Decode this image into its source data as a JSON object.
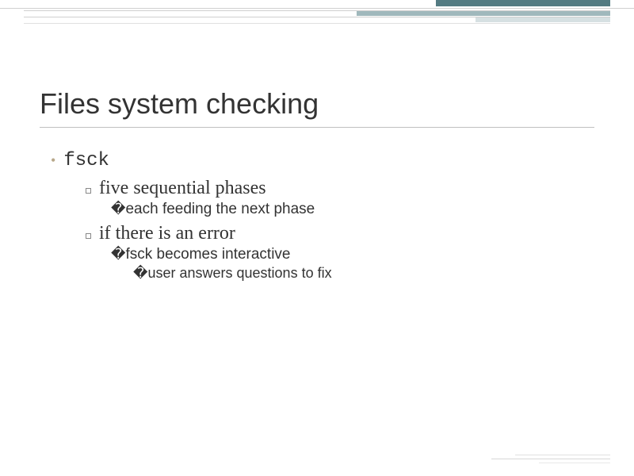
{
  "colors": {
    "accent_dark": "#537b82",
    "accent_mid": "#a0b8bc",
    "accent_light": "#d6e0e2",
    "bullet_dot": "#b8a88a",
    "text": "#333333",
    "rule": "#c0c0c0",
    "background": "#ffffff"
  },
  "typography": {
    "title_font": "Verdana",
    "title_size_pt": 27,
    "mono_font": "Courier New",
    "body_serif": "Georgia",
    "body_sans": "Verdana"
  },
  "slide": {
    "title": "Files system checking",
    "bullets": [
      {
        "text": "fsck",
        "mono": true,
        "children": [
          {
            "text": "five sequential phases",
            "children": [
              {
                "text": "each feeding the next phase"
              }
            ]
          },
          {
            "text": "if there is an error",
            "children": [
              {
                "text": "fsck becomes interactive",
                "children": [
                  {
                    "text": "user answers questions to fix"
                  }
                ]
              }
            ]
          }
        ]
      }
    ]
  }
}
